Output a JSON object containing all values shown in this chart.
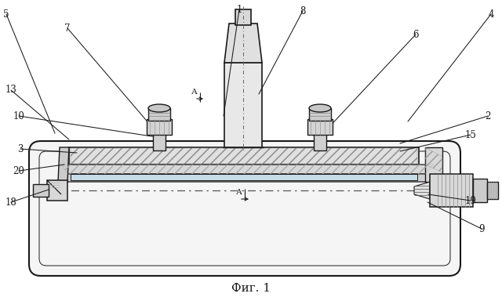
{
  "bg_color": "#ffffff",
  "lc": "#1a1a1a",
  "fig_caption": "Фиг. 1",
  "leaders": [
    [
      "1",
      305,
      12,
      285,
      148
    ],
    [
      "2",
      622,
      148,
      510,
      183
    ],
    [
      "3",
      26,
      190,
      98,
      195
    ],
    [
      "4",
      626,
      18,
      520,
      155
    ],
    [
      "5",
      8,
      18,
      70,
      170
    ],
    [
      "6",
      530,
      44,
      415,
      167
    ],
    [
      "7",
      86,
      36,
      192,
      160
    ],
    [
      "8",
      386,
      14,
      330,
      120
    ],
    [
      "9",
      614,
      292,
      545,
      258
    ],
    [
      "10",
      24,
      148,
      200,
      175
    ],
    [
      "13",
      14,
      115,
      88,
      178
    ],
    [
      "15",
      600,
      172,
      510,
      193
    ],
    [
      "18",
      14,
      258,
      62,
      242
    ],
    [
      "19",
      600,
      256,
      546,
      248
    ],
    [
      "20",
      24,
      218,
      82,
      210
    ]
  ]
}
